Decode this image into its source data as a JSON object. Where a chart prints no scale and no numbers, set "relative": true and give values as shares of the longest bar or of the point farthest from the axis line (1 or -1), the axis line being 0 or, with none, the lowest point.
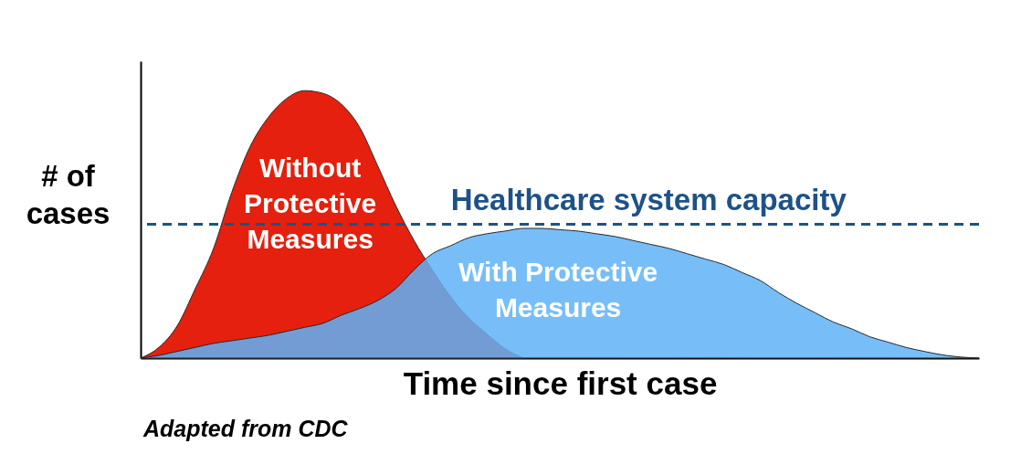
{
  "chart_data": {
    "type": "area",
    "relative": true,
    "xlabel": "Time since first case",
    "ylabel": "# of cases",
    "categories": [
      null,
      null,
      null,
      null,
      null,
      null,
      null,
      null,
      null,
      null,
      null,
      null,
      null,
      null,
      null,
      null,
      null,
      null,
      null,
      null,
      null,
      null,
      null,
      null,
      null,
      null,
      null,
      null,
      null,
      null,
      null,
      null,
      null,
      null,
      null,
      null,
      null,
      null,
      null,
      null,
      null,
      null,
      null,
      null,
      null,
      null,
      null
    ],
    "series": [
      {
        "name": "Without Protective Measures",
        "color": "#e5200e",
        "values": [
          0,
          0.04,
          0.12,
          0.26,
          0.41,
          0.62,
          0.79,
          0.9,
          0.97,
          1.0,
          0.99,
          0.95,
          0.865,
          0.72,
          0.57,
          0.44,
          0.33,
          0.23,
          0.15,
          0.09,
          0.035,
          0,
          null,
          null,
          null,
          null,
          null,
          null,
          null,
          null,
          null,
          null,
          null,
          null,
          null,
          null,
          null,
          null,
          null,
          null,
          null,
          null,
          null,
          null,
          null,
          null,
          null
        ]
      },
      {
        "name": "With Protective Measures",
        "color": "#5fb3f7",
        "values": [
          0,
          0.01,
          0.025,
          0.04,
          0.055,
          0.065,
          0.075,
          0.085,
          0.1,
          0.115,
          0.13,
          0.16,
          0.185,
          0.215,
          0.26,
          0.33,
          0.39,
          0.42,
          0.45,
          0.465,
          0.475,
          0.485,
          0.485,
          0.48,
          0.475,
          0.465,
          0.455,
          0.44,
          0.425,
          0.41,
          0.39,
          0.37,
          0.35,
          0.32,
          0.29,
          0.245,
          0.205,
          0.17,
          0.135,
          0.11,
          0.08,
          0.06,
          0.04,
          0.025,
          0.012,
          0.004,
          0
        ]
      }
    ],
    "ref_lines": [
      {
        "axis": "y",
        "value": 0.5,
        "label": "Healthcare system capacity",
        "color": "#1d5287",
        "line_style": "dashed"
      }
    ],
    "annotations": [
      "Adapted from CDC"
    ]
  }
}
